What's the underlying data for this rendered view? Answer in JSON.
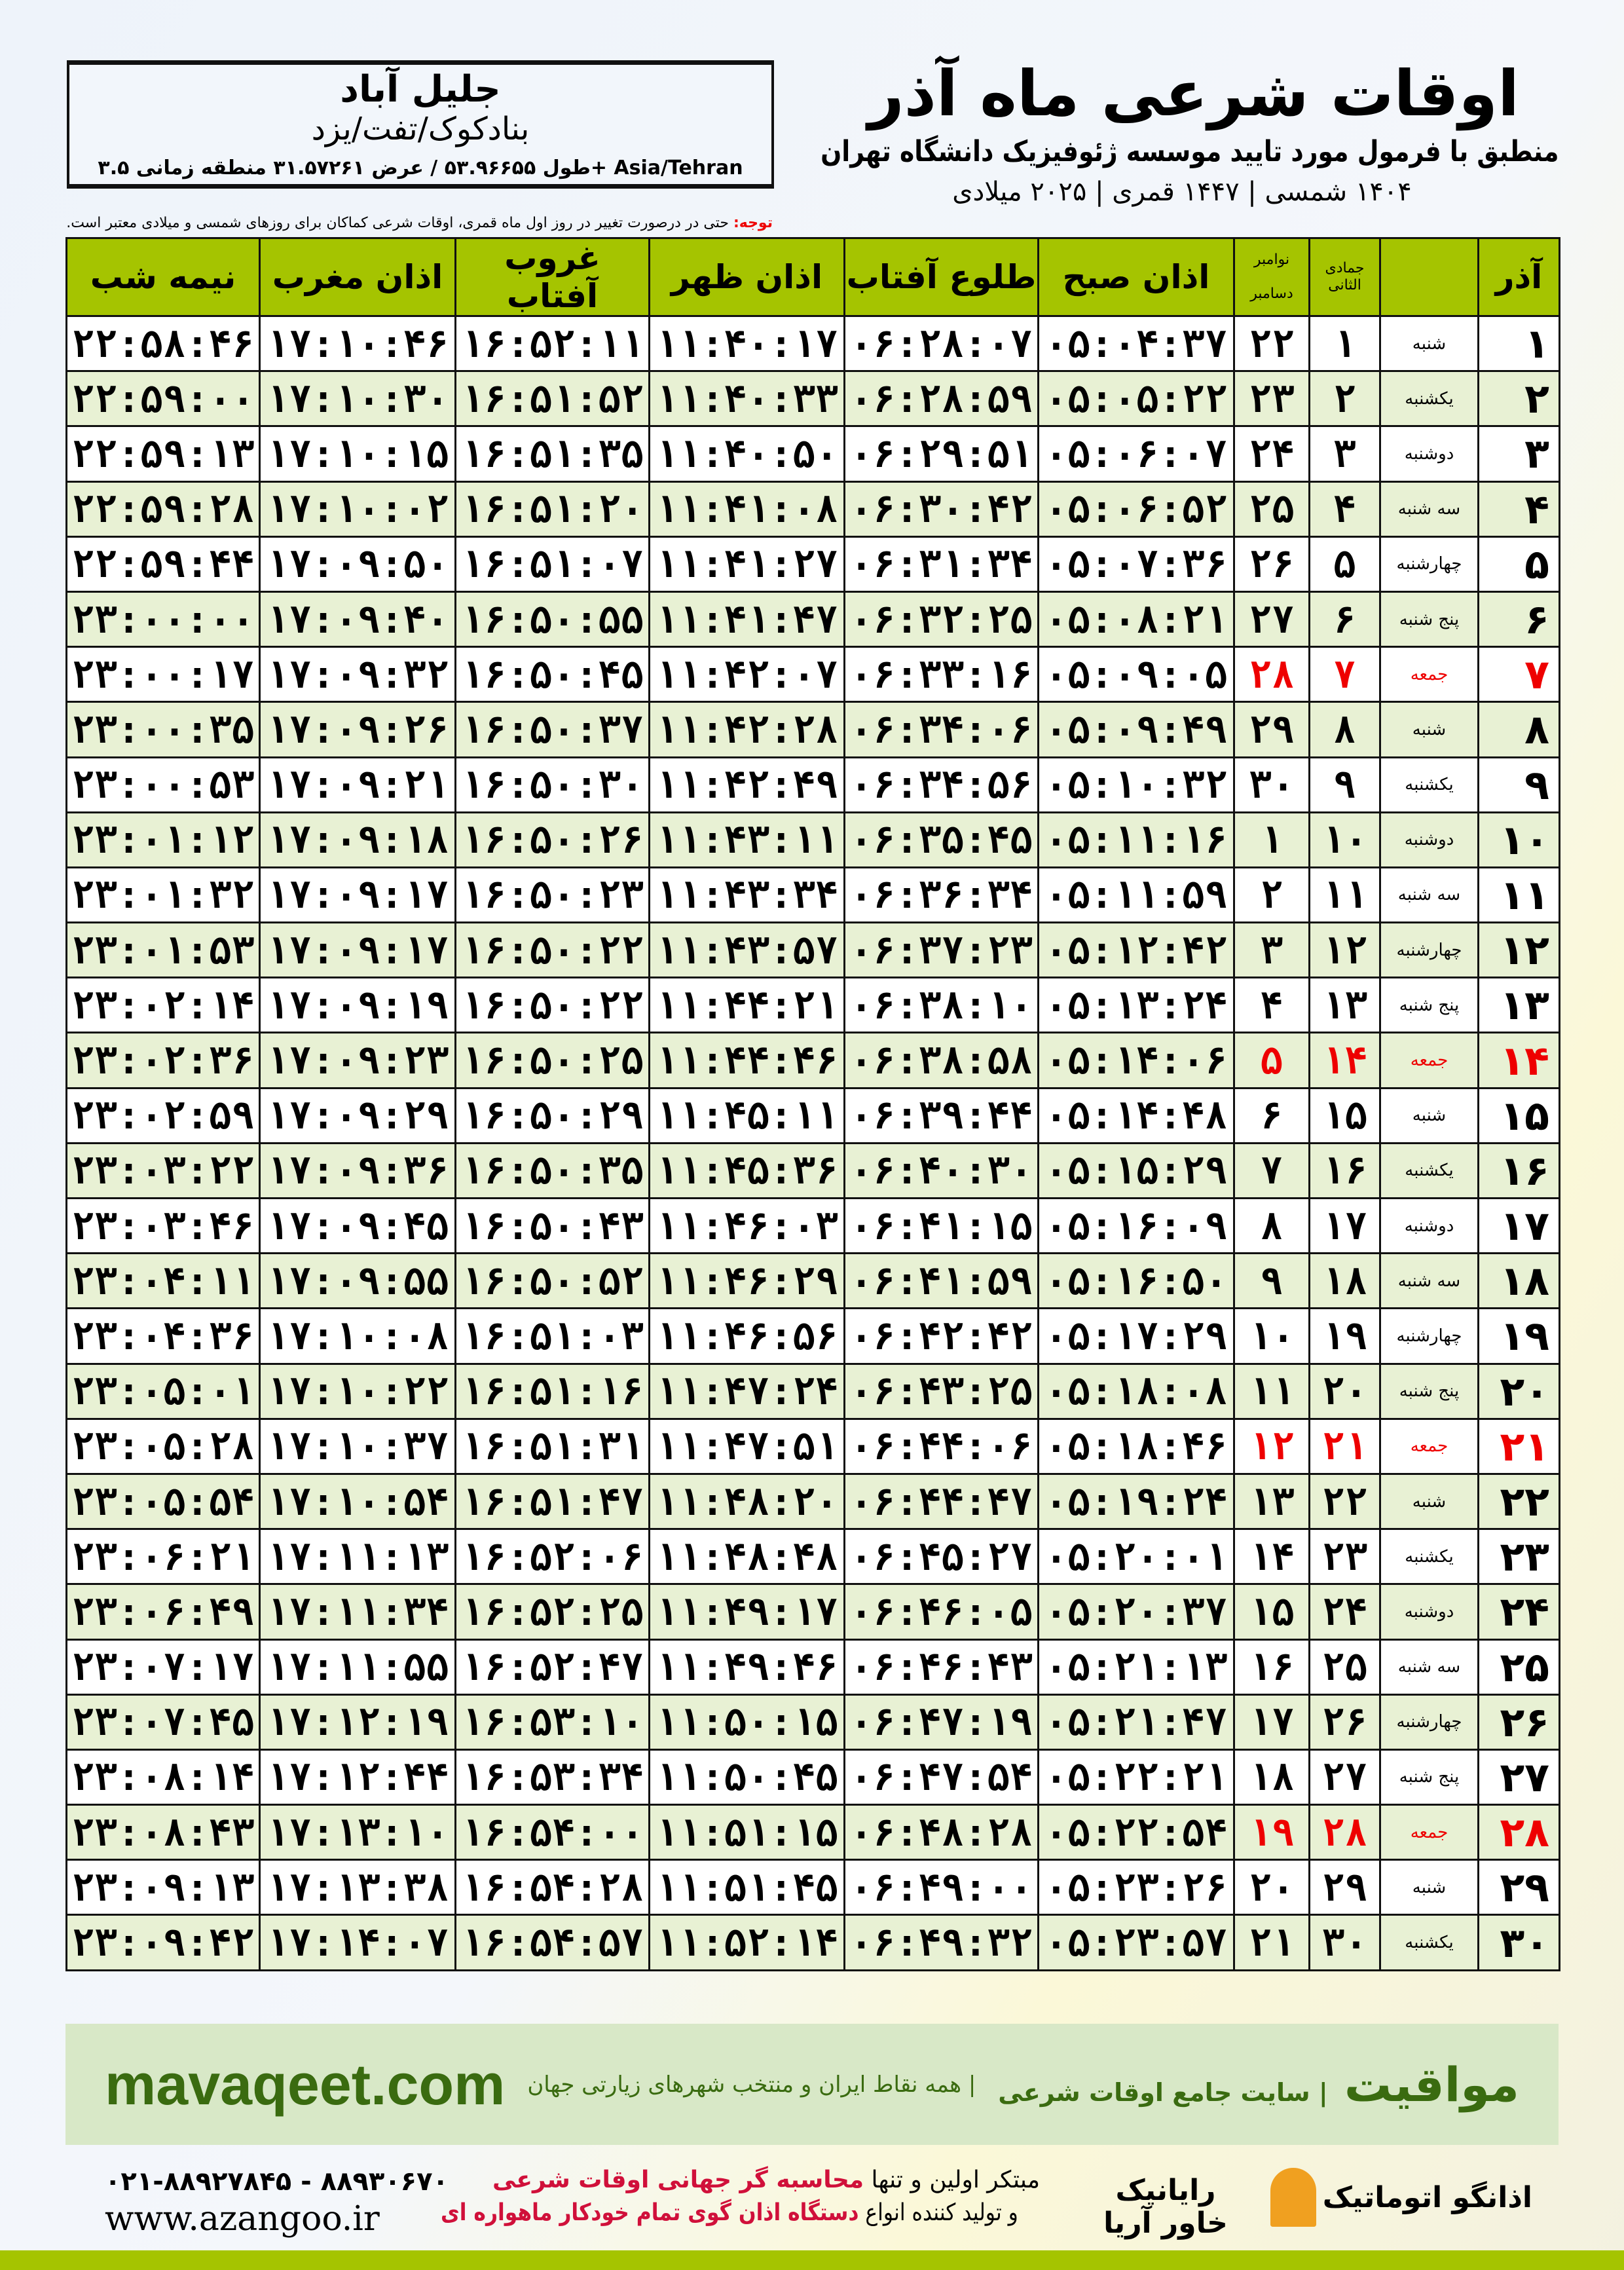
{
  "location": {
    "city": "جلیل آباد",
    "region": "بنادکوک/تفت/یزد",
    "coords": "طول ۵۳.۹۶۶۵۵ / عرض ۳۱.۵۷۲۶۱ منطقه زمانی ۳.۵+ Asia/Tehran"
  },
  "header": {
    "title": "اوقات شرعی ماه آذر",
    "subtitle": "منطبق با فرمول مورد تایید موسسه ژئوفیزیک دانشگاه تهران",
    "years": "۱۴۰۴ شمسی | ۱۴۴۷ قمری | ۲۰۲۵ میلادی"
  },
  "note": {
    "label": "توجه:",
    "text": " حتی در درصورت تغییر در روز اول ماه قمری، اوقات شرعی کماکان برای روزهای شمسی و میلادی معتبر است."
  },
  "columns": {
    "month": "آذر",
    "hijri": "جمادی الثانی",
    "greg_top": "نوامبر",
    "greg_bottom": "دسامبر",
    "fajr": "اذان صبح",
    "sunrise": "طلوع آفتاب",
    "dhuhr": "اذان ظهر",
    "sunset": "غروب آفتاب",
    "maghrib": "اذان مغرب",
    "midnight": "نیمه شب"
  },
  "colors": {
    "header_green": "#a5c400",
    "friday_red": "#e00000",
    "row_alt": "#e8f1d4"
  },
  "rows": [
    [
      "۱",
      "شنبه",
      "۱",
      "۲۲",
      "۰۵:۰۴:۳۷",
      "۰۶:۲۸:۰۷",
      "۱۱:۴۰:۱۷",
      "۱۶:۵۲:۱۱",
      "۱۷:۱۰:۴۶",
      "۲۲:۵۸:۴۶"
    ],
    [
      "۲",
      "یکشنبه",
      "۲",
      "۲۳",
      "۰۵:۰۵:۲۲",
      "۰۶:۲۸:۵۹",
      "۱۱:۴۰:۳۳",
      "۱۶:۵۱:۵۲",
      "۱۷:۱۰:۳۰",
      "۲۲:۵۹:۰۰"
    ],
    [
      "۳",
      "دوشنبه",
      "۳",
      "۲۴",
      "۰۵:۰۶:۰۷",
      "۰۶:۲۹:۵۱",
      "۱۱:۴۰:۵۰",
      "۱۶:۵۱:۳۵",
      "۱۷:۱۰:۱۵",
      "۲۲:۵۹:۱۳"
    ],
    [
      "۴",
      "سه شنبه",
      "۴",
      "۲۵",
      "۰۵:۰۶:۵۲",
      "۰۶:۳۰:۴۲",
      "۱۱:۴۱:۰۸",
      "۱۶:۵۱:۲۰",
      "۱۷:۱۰:۰۲",
      "۲۲:۵۹:۲۸"
    ],
    [
      "۵",
      "چهارشنبه",
      "۵",
      "۲۶",
      "۰۵:۰۷:۳۶",
      "۰۶:۳۱:۳۴",
      "۱۱:۴۱:۲۷",
      "۱۶:۵۱:۰۷",
      "۱۷:۰۹:۵۰",
      "۲۲:۵۹:۴۴"
    ],
    [
      "۶",
      "پنج شنبه",
      "۶",
      "۲۷",
      "۰۵:۰۸:۲۱",
      "۰۶:۳۲:۲۵",
      "۱۱:۴۱:۴۷",
      "۱۶:۵۰:۵۵",
      "۱۷:۰۹:۴۰",
      "۲۳:۰۰:۰۰"
    ],
    [
      "۷",
      "جمعه",
      "۷",
      "۲۸",
      "۰۵:۰۹:۰۵",
      "۰۶:۳۳:۱۶",
      "۱۱:۴۲:۰۷",
      "۱۶:۵۰:۴۵",
      "۱۷:۰۹:۳۲",
      "۲۳:۰۰:۱۷"
    ],
    [
      "۸",
      "شنبه",
      "۸",
      "۲۹",
      "۰۵:۰۹:۴۹",
      "۰۶:۳۴:۰۶",
      "۱۱:۴۲:۲۸",
      "۱۶:۵۰:۳۷",
      "۱۷:۰۹:۲۶",
      "۲۳:۰۰:۳۵"
    ],
    [
      "۹",
      "یکشنبه",
      "۹",
      "۳۰",
      "۰۵:۱۰:۳۲",
      "۰۶:۳۴:۵۶",
      "۱۱:۴۲:۴۹",
      "۱۶:۵۰:۳۰",
      "۱۷:۰۹:۲۱",
      "۲۳:۰۰:۵۳"
    ],
    [
      "۱۰",
      "دوشنبه",
      "۱۰",
      "۱",
      "۰۵:۱۱:۱۶",
      "۰۶:۳۵:۴۵",
      "۱۱:۴۳:۱۱",
      "۱۶:۵۰:۲۶",
      "۱۷:۰۹:۱۸",
      "۲۳:۰۱:۱۲"
    ],
    [
      "۱۱",
      "سه شنبه",
      "۱۱",
      "۲",
      "۰۵:۱۱:۵۹",
      "۰۶:۳۶:۳۴",
      "۱۱:۴۳:۳۴",
      "۱۶:۵۰:۲۳",
      "۱۷:۰۹:۱۷",
      "۲۳:۰۱:۳۲"
    ],
    [
      "۱۲",
      "چهارشنبه",
      "۱۲",
      "۳",
      "۰۵:۱۲:۴۲",
      "۰۶:۳۷:۲۳",
      "۱۱:۴۳:۵۷",
      "۱۶:۵۰:۲۲",
      "۱۷:۰۹:۱۷",
      "۲۳:۰۱:۵۳"
    ],
    [
      "۱۳",
      "پنج شنبه",
      "۱۳",
      "۴",
      "۰۵:۱۳:۲۴",
      "۰۶:۳۸:۱۰",
      "۱۱:۴۴:۲۱",
      "۱۶:۵۰:۲۲",
      "۱۷:۰۹:۱۹",
      "۲۳:۰۲:۱۴"
    ],
    [
      "۱۴",
      "جمعه",
      "۱۴",
      "۵",
      "۰۵:۱۴:۰۶",
      "۰۶:۳۸:۵۸",
      "۱۱:۴۴:۴۶",
      "۱۶:۵۰:۲۵",
      "۱۷:۰۹:۲۳",
      "۲۳:۰۲:۳۶"
    ],
    [
      "۱۵",
      "شنبه",
      "۱۵",
      "۶",
      "۰۵:۱۴:۴۸",
      "۰۶:۳۹:۴۴",
      "۱۱:۴۵:۱۱",
      "۱۶:۵۰:۲۹",
      "۱۷:۰۹:۲۹",
      "۲۳:۰۲:۵۹"
    ],
    [
      "۱۶",
      "یکشنبه",
      "۱۶",
      "۷",
      "۰۵:۱۵:۲۹",
      "۰۶:۴۰:۳۰",
      "۱۱:۴۵:۳۶",
      "۱۶:۵۰:۳۵",
      "۱۷:۰۹:۳۶",
      "۲۳:۰۳:۲۲"
    ],
    [
      "۱۷",
      "دوشنبه",
      "۱۷",
      "۸",
      "۰۵:۱۶:۰۹",
      "۰۶:۴۱:۱۵",
      "۱۱:۴۶:۰۳",
      "۱۶:۵۰:۴۳",
      "۱۷:۰۹:۴۵",
      "۲۳:۰۳:۴۶"
    ],
    [
      "۱۸",
      "سه شنبه",
      "۱۸",
      "۹",
      "۰۵:۱۶:۵۰",
      "۰۶:۴۱:۵۹",
      "۱۱:۴۶:۲۹",
      "۱۶:۵۰:۵۲",
      "۱۷:۰۹:۵۵",
      "۲۳:۰۴:۱۱"
    ],
    [
      "۱۹",
      "چهارشنبه",
      "۱۹",
      "۱۰",
      "۰۵:۱۷:۲۹",
      "۰۶:۴۲:۴۲",
      "۱۱:۴۶:۵۶",
      "۱۶:۵۱:۰۳",
      "۱۷:۱۰:۰۸",
      "۲۳:۰۴:۳۶"
    ],
    [
      "۲۰",
      "پنج شنبه",
      "۲۰",
      "۱۱",
      "۰۵:۱۸:۰۸",
      "۰۶:۴۳:۲۵",
      "۱۱:۴۷:۲۴",
      "۱۶:۵۱:۱۶",
      "۱۷:۱۰:۲۲",
      "۲۳:۰۵:۰۱"
    ],
    [
      "۲۱",
      "جمعه",
      "۲۱",
      "۱۲",
      "۰۵:۱۸:۴۶",
      "۰۶:۴۴:۰۶",
      "۱۱:۴۷:۵۱",
      "۱۶:۵۱:۳۱",
      "۱۷:۱۰:۳۷",
      "۲۳:۰۵:۲۸"
    ],
    [
      "۲۲",
      "شنبه",
      "۲۲",
      "۱۳",
      "۰۵:۱۹:۲۴",
      "۰۶:۴۴:۴۷",
      "۱۱:۴۸:۲۰",
      "۱۶:۵۱:۴۷",
      "۱۷:۱۰:۵۴",
      "۲۳:۰۵:۵۴"
    ],
    [
      "۲۳",
      "یکشنبه",
      "۲۳",
      "۱۴",
      "۰۵:۲۰:۰۱",
      "۰۶:۴۵:۲۷",
      "۱۱:۴۸:۴۸",
      "۱۶:۵۲:۰۶",
      "۱۷:۱۱:۱۳",
      "۲۳:۰۶:۲۱"
    ],
    [
      "۲۴",
      "دوشنبه",
      "۲۴",
      "۱۵",
      "۰۵:۲۰:۳۷",
      "۰۶:۴۶:۰۵",
      "۱۱:۴۹:۱۷",
      "۱۶:۵۲:۲۵",
      "۱۷:۱۱:۳۴",
      "۲۳:۰۶:۴۹"
    ],
    [
      "۲۵",
      "سه شنبه",
      "۲۵",
      "۱۶",
      "۰۵:۲۱:۱۳",
      "۰۶:۴۶:۴۳",
      "۱۱:۴۹:۴۶",
      "۱۶:۵۲:۴۷",
      "۱۷:۱۱:۵۵",
      "۲۳:۰۷:۱۷"
    ],
    [
      "۲۶",
      "چهارشنبه",
      "۲۶",
      "۱۷",
      "۰۵:۲۱:۴۷",
      "۰۶:۴۷:۱۹",
      "۱۱:۵۰:۱۵",
      "۱۶:۵۳:۱۰",
      "۱۷:۱۲:۱۹",
      "۲۳:۰۷:۴۵"
    ],
    [
      "۲۷",
      "پنج شنبه",
      "۲۷",
      "۱۸",
      "۰۵:۲۲:۲۱",
      "۰۶:۴۷:۵۴",
      "۱۱:۵۰:۴۵",
      "۱۶:۵۳:۳۴",
      "۱۷:۱۲:۴۴",
      "۲۳:۰۸:۱۴"
    ],
    [
      "۲۸",
      "جمعه",
      "۲۸",
      "۱۹",
      "۰۵:۲۲:۵۴",
      "۰۶:۴۸:۲۸",
      "۱۱:۵۱:۱۵",
      "۱۶:۵۴:۰۰",
      "۱۷:۱۳:۱۰",
      "۲۳:۰۸:۴۳"
    ],
    [
      "۲۹",
      "شنبه",
      "۲۹",
      "۲۰",
      "۰۵:۲۳:۲۶",
      "۰۶:۴۹:۰۰",
      "۱۱:۵۱:۴۵",
      "۱۶:۵۴:۲۸",
      "۱۷:۱۳:۳۸",
      "۲۳:۰۹:۱۳"
    ],
    [
      "۳۰",
      "یکشنبه",
      "۳۰",
      "۲۱",
      "۰۵:۲۳:۵۷",
      "۰۶:۴۹:۳۲",
      "۱۱:۵۲:۱۴",
      "۱۶:۵۴:۵۷",
      "۱۷:۱۴:۰۷",
      "۲۳:۰۹:۴۲"
    ]
  ],
  "banner": {
    "brand": "مواقیت",
    "tagline": "| سایت جامع اوقات شرعی",
    "tag2": "| همه نقاط ایران و منتخب شهرهای زیارتی جهان",
    "site": "mavaqeet.com"
  },
  "footer": {
    "phone": "۰۲۱-۸۸۹۲۷۸۴۵ - ۸۸۹۳۰۶۷۰",
    "web": "www.azangoo.ir",
    "line1a": "مبتکر اولین و تنها ",
    "line1b": "محاسبه گر جهانی اوقات شرعی",
    "line2a": "و تولید کننده انواع ",
    "line2b": "دستگاه اذان گوی تمام خودکار ماهواره ای",
    "logo_raya": "رایانیک خاور آریا",
    "logo_azangoo": "اذانگو اتوماتیک"
  }
}
